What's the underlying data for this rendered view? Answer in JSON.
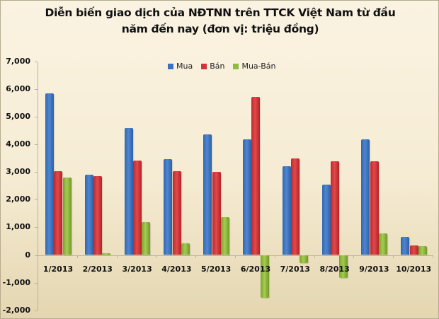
{
  "title_lines": [
    "Diễn biến giao dịch của NĐTNN trên TTCK Việt Nam từ đầu",
    "năm đến nay (đơn vị: triệu đồng)"
  ],
  "legend": [
    {
      "label": "Mua",
      "color": "#3a72c0"
    },
    {
      "label": "Bán",
      "color": "#d23539"
    },
    {
      "label": "Mua-Bán",
      "color": "#8fbc3f"
    }
  ],
  "y_ticks": [
    "7,000",
    "6,000",
    "5,000",
    "4,000",
    "3,000",
    "2,000",
    "1,000",
    "0",
    "-1,000",
    "-2,000"
  ],
  "chart_data": {
    "type": "bar",
    "title": "Diễn biến giao dịch của NĐTNN trên TTCK Việt Nam từ đầu năm đến nay (đơn vị: triệu đồng)",
    "xlabel": "",
    "ylabel": "",
    "ylim": [
      -2000,
      7000
    ],
    "grid": false,
    "legend_position": "top",
    "categories": [
      "1/2013",
      "2/2013",
      "3/2013",
      "4/2013",
      "5/2013",
      "6/2013",
      "7/2013",
      "8/2013",
      "9/2013",
      "10/2013"
    ],
    "series": [
      {
        "name": "Mua",
        "color": "#3a72c0",
        "values": [
          5850,
          2910,
          4600,
          3460,
          4370,
          4170,
          3210,
          2540,
          4170,
          660
        ]
      },
      {
        "name": "Bán",
        "color": "#d23539",
        "values": [
          3040,
          2840,
          3410,
          3030,
          3000,
          5720,
          3500,
          3380,
          3400,
          340
        ]
      },
      {
        "name": "Mua-Bán",
        "color": "#8fbc3f",
        "values": [
          2810,
          70,
          1190,
          430,
          1370,
          -1550,
          -290,
          -840,
          770,
          310
        ]
      }
    ]
  }
}
